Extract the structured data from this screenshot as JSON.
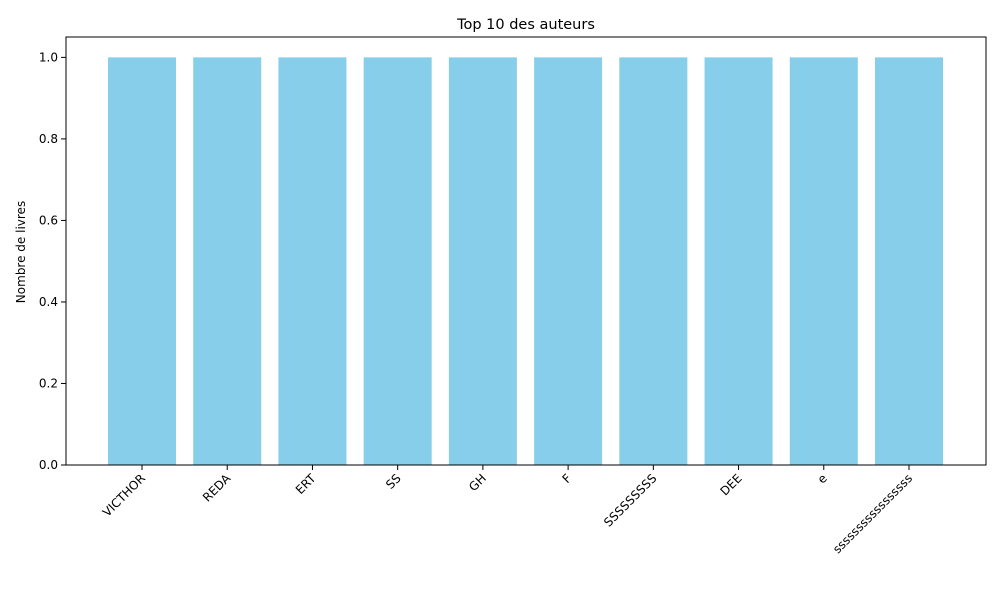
{
  "chart_data": {
    "type": "bar",
    "title": "Top 10 des auteurs",
    "xlabel": "",
    "ylabel": "Nombre de livres",
    "categories": [
      "VICTHOR",
      "REDA",
      "ERT",
      "SS",
      "GH",
      "F",
      "SSSSSSSSS",
      "DEE",
      "e",
      "sssssssssssssssss"
    ],
    "values": [
      1,
      1,
      1,
      1,
      1,
      1,
      1,
      1,
      1,
      1
    ],
    "ylim": [
      0,
      1.05
    ],
    "yticks": [
      "0.0",
      "0.2",
      "0.4",
      "0.6",
      "0.8",
      "1.0"
    ],
    "bar_color": "#87ceeb",
    "grid": false,
    "legend": "none"
  }
}
